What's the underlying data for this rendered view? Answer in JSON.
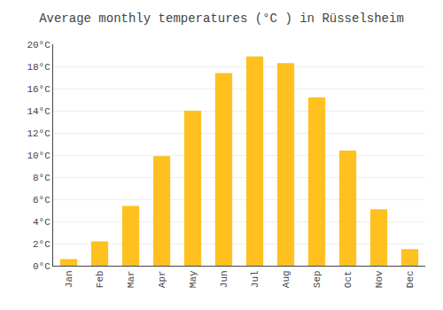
{
  "chart_data": {
    "type": "bar",
    "title": "Average monthly temperatures (°C ) in Rüsselsheim",
    "categories": [
      "Jan",
      "Feb",
      "Mar",
      "Apr",
      "May",
      "Jun",
      "Jul",
      "Aug",
      "Sep",
      "Oct",
      "Nov",
      "Dec"
    ],
    "values": [
      0.6,
      2.2,
      5.4,
      9.9,
      14.0,
      17.4,
      18.9,
      18.3,
      15.2,
      10.4,
      5.1,
      1.5
    ],
    "color": "#FFC020",
    "ylim": [
      0,
      20
    ],
    "yticks": [
      {
        "value": 0,
        "label": "0°C"
      },
      {
        "value": 2,
        "label": "2°C"
      },
      {
        "value": 4,
        "label": "4°C"
      },
      {
        "value": 6,
        "label": "6°C"
      },
      {
        "value": 8,
        "label": "8°C"
      },
      {
        "value": 10,
        "label": "10°C"
      },
      {
        "value": 12,
        "label": "12°C"
      },
      {
        "value": 14,
        "label": "14°C"
      },
      {
        "value": 16,
        "label": "16°C"
      },
      {
        "value": 18,
        "label": "18°C"
      },
      {
        "value": 20,
        "label": "20°C"
      }
    ],
    "grid": true
  }
}
